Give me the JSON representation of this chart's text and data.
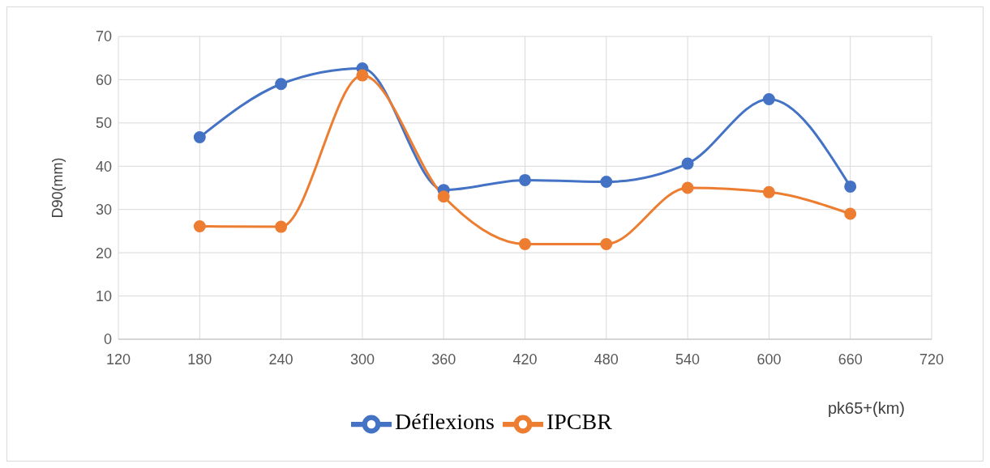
{
  "chart_data": {
    "type": "line",
    "ylabel": "D90(mm)",
    "xlabel": "pk65+(km)",
    "x": [
      180,
      240,
      300,
      360,
      420,
      480,
      540,
      600,
      660
    ],
    "series": [
      {
        "name": "Déflexions",
        "color": "#4472c4",
        "values": [
          46.7,
          59.0,
          62.6,
          34.5,
          36.8,
          36.4,
          40.6,
          55.5,
          35.3
        ]
      },
      {
        "name": "IPCBR",
        "color": "#ed7d31",
        "values": [
          26.1,
          26.0,
          61.0,
          33.0,
          22.0,
          22.0,
          35.0,
          34.0,
          29.0
        ]
      }
    ],
    "xlim": [
      120,
      720
    ],
    "xticks": [
      120,
      180,
      240,
      300,
      360,
      420,
      480,
      540,
      600,
      660,
      720
    ],
    "ylim": [
      0,
      70
    ],
    "yticks": [
      0,
      10,
      20,
      30,
      40,
      50,
      60,
      70
    ],
    "grid": true,
    "legend": "bottom",
    "marker": "circle",
    "line_style": "solid"
  }
}
